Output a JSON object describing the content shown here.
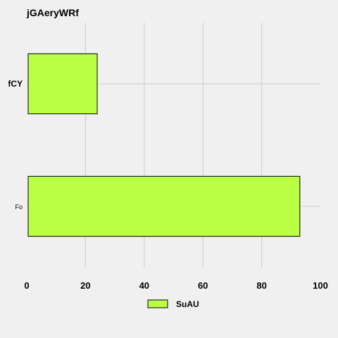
{
  "chart_data": {
    "type": "bar",
    "orientation": "horizontal",
    "title": "jGAeryWRf",
    "categories": [
      "Fo",
      "fCY"
    ],
    "series": [
      {
        "name": "SuAU",
        "values": [
          93,
          24
        ]
      }
    ],
    "xlim": [
      0,
      100
    ],
    "xticks": [
      "0",
      "20",
      "40",
      "60",
      "80",
      "100"
    ],
    "xlabel": "",
    "ylabel": "",
    "grid": true,
    "legend": "bottom-center",
    "colors": {
      "bar": "#bbff44",
      "background": "#f0f0f0",
      "grid": "#cbcbcb"
    }
  }
}
